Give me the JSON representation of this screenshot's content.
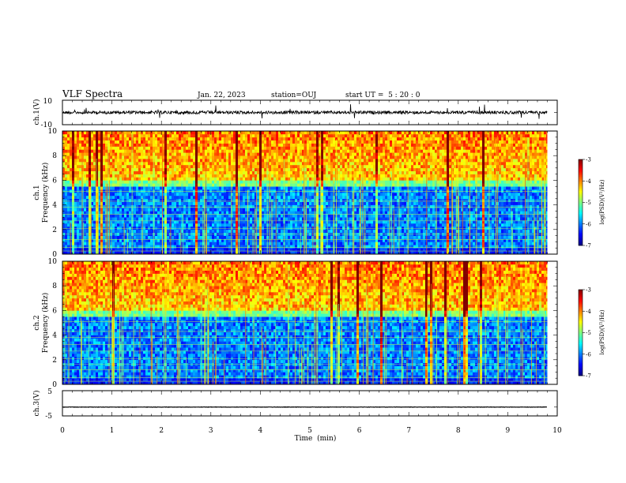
{
  "header": {
    "title": "VLF Spectra",
    "date": "Jan. 22, 2023",
    "station": "station=OUJ",
    "start": "start UT =  5 : 20 : 0"
  },
  "chart_data": [
    {
      "type": "line",
      "id": "ch1-waveform",
      "ylabel": "ch.1(V)",
      "ylim": [
        -10,
        10
      ],
      "yticks": [
        "10",
        "-10"
      ],
      "approx_mean_V": 0,
      "xlim": [
        0,
        10
      ]
    },
    {
      "type": "heatmap",
      "id": "ch1-spectrogram",
      "ylabel_line1": "ch.1",
      "ylabel_line2": "Frequency  (kHz)",
      "ylim": [
        0,
        10
      ],
      "yticks": [
        "0",
        "2",
        "4",
        "6",
        "8",
        "10"
      ],
      "xlim": [
        0,
        9.8
      ],
      "colorbar": {
        "label": "log(PSD)(V²/Hz)",
        "range": [
          -7,
          -3
        ],
        "ticks": [
          "-3",
          "-4",
          "-5",
          "-6",
          "-7"
        ]
      }
    },
    {
      "type": "heatmap",
      "id": "ch2-spectrogram",
      "ylabel_line1": "ch.2",
      "ylabel_line2": "Frequency  (kHz)",
      "ylim": [
        0,
        10
      ],
      "yticks": [
        "0",
        "2",
        "4",
        "6",
        "8",
        "10"
      ],
      "xlim": [
        0,
        9.8
      ],
      "colorbar": {
        "label": "log(PSD)(V²/Hz)",
        "range": [
          -7,
          -3
        ],
        "ticks": [
          "-3",
          "-4",
          "-5",
          "-6",
          "-7"
        ]
      }
    },
    {
      "type": "line",
      "id": "ch3-waveform",
      "ylabel": "ch.3(V)",
      "ylim": [
        -5,
        5
      ],
      "yticks": [
        "5",
        "-5"
      ],
      "approx_mean_V": -1.5,
      "xlim": [
        0,
        10
      ]
    }
  ],
  "xaxis": {
    "label": "Time  (min)",
    "ticks": [
      "0",
      "1",
      "2",
      "3",
      "4",
      "5",
      "6",
      "7",
      "8",
      "9",
      "10"
    ]
  }
}
